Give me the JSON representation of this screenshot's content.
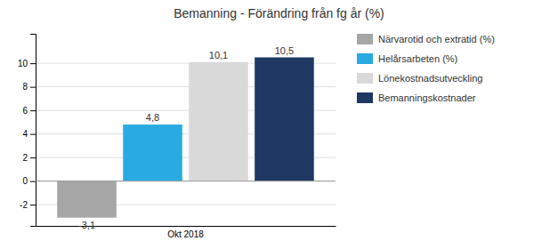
{
  "chart_data": {
    "type": "bar",
    "title": "Bemanning - Förändring från fg år (%)",
    "categories": [
      "Okt 2018"
    ],
    "series": [
      {
        "name": "Närvarotid och extratid (%)",
        "color": "#a6a6a6",
        "values": [
          -3.1
        ],
        "value_labels": [
          "-3,1"
        ]
      },
      {
        "name": "Helårsarbeten (%)",
        "color": "#29abe2",
        "values": [
          4.8
        ],
        "value_labels": [
          "4,8"
        ]
      },
      {
        "name": "Lönekostnadsutveckling",
        "color": "#d9d9d9",
        "values": [
          10.1
        ],
        "value_labels": [
          "10,1"
        ]
      },
      {
        "name": "Bemanningskostnader",
        "color": "#1f3864",
        "values": [
          10.5
        ],
        "value_labels": [
          "10,5"
        ]
      }
    ],
    "ylim": [
      -3.8,
      12.5
    ],
    "yticks": [
      -2,
      0,
      2,
      4,
      6,
      8,
      10
    ],
    "grid": true,
    "legend": "right",
    "data_labels": true
  }
}
